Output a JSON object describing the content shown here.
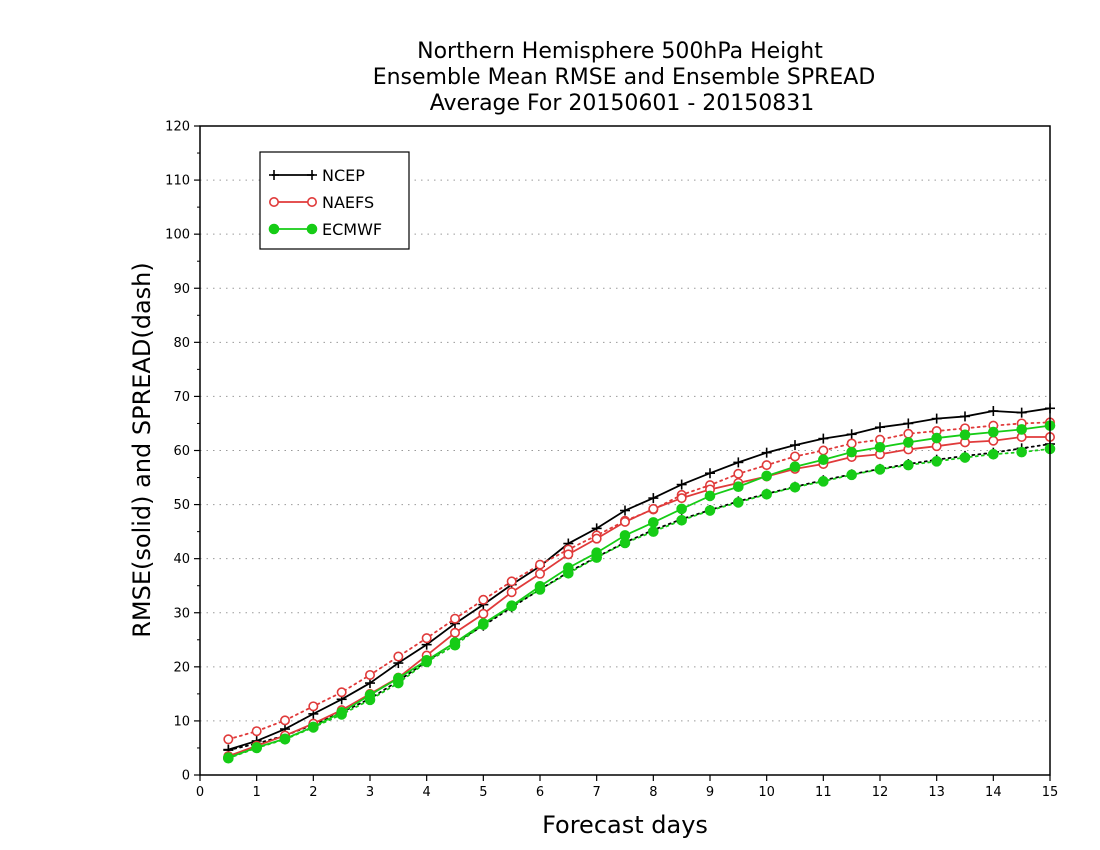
{
  "chart_data": {
    "type": "line",
    "title_lines": [
      "Northern Hemisphere 500hPa Height",
      "Ensemble Mean RMSE and Ensemble SPREAD",
      "Average For 20150601 - 20150831"
    ],
    "xlabel": "Forecast days",
    "ylabel": "RMSE(solid) and SPREAD(dash)",
    "xlim": [
      0,
      15
    ],
    "ylim": [
      0,
      120
    ],
    "x_ticks": [
      "0",
      "1",
      "2",
      "3",
      "4",
      "5",
      "6",
      "7",
      "8",
      "9",
      "10",
      "11",
      "12",
      "13",
      "14",
      "15"
    ],
    "y_ticks": [
      "0",
      "10",
      "20",
      "30",
      "40",
      "50",
      "60",
      "70",
      "80",
      "90",
      "100",
      "110",
      "120"
    ],
    "grid": "horizontal dotted",
    "legend_position": "top-left",
    "x": [
      0.5,
      1,
      1.5,
      2,
      2.5,
      3,
      3.5,
      4,
      4.5,
      5,
      5.5,
      6,
      6.5,
      7,
      7.5,
      8,
      8.5,
      9,
      9.5,
      10,
      10.5,
      11,
      11.5,
      12,
      12.5,
      13,
      13.5,
      14,
      14.5,
      15
    ],
    "series": [
      {
        "name": "NCEP",
        "color": "#000000",
        "marker": "plus",
        "rmse": [
          4.7,
          6.3,
          8.5,
          11.3,
          14.0,
          17.0,
          20.7,
          24.1,
          28.0,
          31.5,
          35.2,
          38.6,
          42.8,
          45.6,
          48.9,
          51.2,
          53.7,
          55.8,
          57.8,
          59.6,
          61.0,
          62.2,
          63.0,
          64.3,
          65.0,
          65.9,
          66.3,
          67.3,
          67.0,
          67.8
        ],
        "spread": [
          4.6,
          5.8,
          7.3,
          9.3,
          11.6,
          14.1,
          17.4,
          21.0,
          24.5,
          27.6,
          31.0,
          34.3,
          37.5,
          40.3,
          43.0,
          45.3,
          47.3,
          49.0,
          50.6,
          52.0,
          53.3,
          54.5,
          55.6,
          56.6,
          57.5,
          58.3,
          59.0,
          59.6,
          60.4,
          61.2
        ]
      },
      {
        "name": "NAEFS",
        "color": "#e03a3a",
        "marker": "open-circle",
        "rmse": [
          3.5,
          5.4,
          7.3,
          9.5,
          12.0,
          15.0,
          18.0,
          22.1,
          26.3,
          29.8,
          33.8,
          37.2,
          40.8,
          43.7,
          46.8,
          49.2,
          51.2,
          52.8,
          54.0,
          55.2,
          56.6,
          57.5,
          58.8,
          59.3,
          60.2,
          60.8,
          61.5,
          61.8,
          62.5,
          62.5
        ],
        "spread": [
          6.6,
          8.1,
          10.1,
          12.7,
          15.3,
          18.5,
          21.9,
          25.3,
          28.9,
          32.4,
          35.8,
          38.9,
          41.7,
          44.3,
          47.0,
          49.1,
          51.8,
          53.6,
          55.7,
          57.3,
          58.9,
          60.0,
          61.3,
          62.0,
          63.1,
          63.6,
          64.1,
          64.6,
          65.0,
          65.2
        ]
      },
      {
        "name": "ECMWF",
        "color": "#16cc16",
        "marker": "filled-circle",
        "rmse": [
          3.2,
          5.1,
          6.7,
          8.9,
          11.6,
          14.8,
          17.9,
          21.2,
          24.5,
          28.0,
          31.3,
          34.9,
          38.3,
          41.1,
          44.3,
          46.7,
          49.2,
          51.6,
          53.3,
          55.3,
          57.0,
          58.3,
          59.7,
          60.6,
          61.5,
          62.3,
          62.9,
          63.4,
          63.9,
          64.6
        ],
        "spread": [
          3.1,
          5.0,
          6.6,
          8.8,
          11.2,
          13.9,
          17.0,
          20.9,
          24.0,
          27.8,
          31.2,
          34.3,
          37.3,
          40.2,
          42.9,
          45.0,
          47.1,
          48.9,
          50.4,
          51.9,
          53.2,
          54.3,
          55.5,
          56.5,
          57.3,
          58.0,
          58.7,
          59.3,
          59.7,
          60.3
        ]
      }
    ]
  }
}
